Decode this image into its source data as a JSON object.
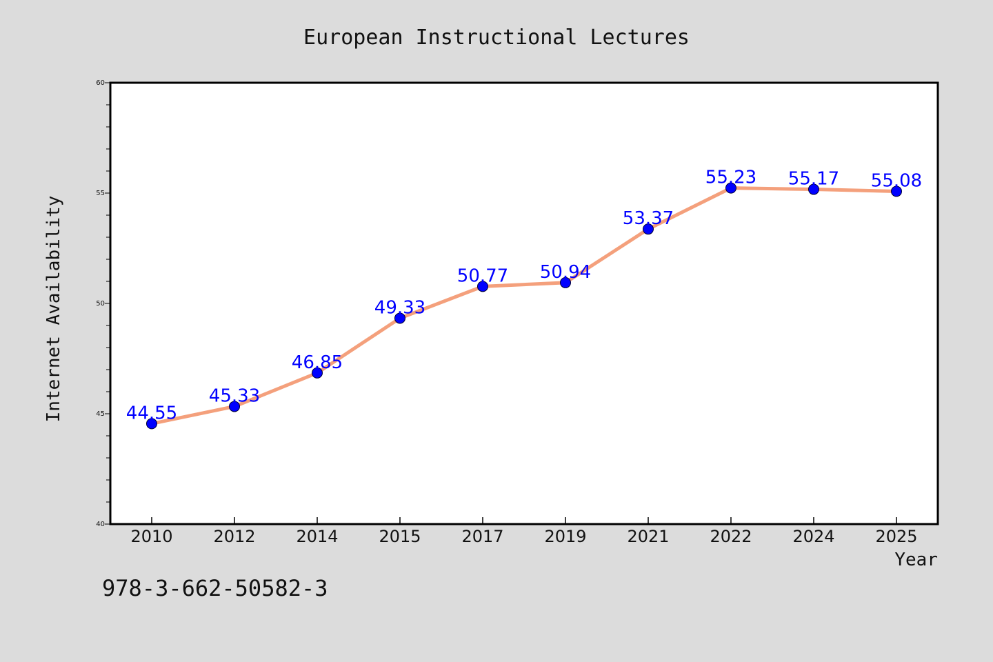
{
  "footer": {
    "code": "978-3-662-50582-3"
  },
  "chart_data": {
    "type": "line",
    "title": "European Instructional Lectures",
    "xlabel": "Year",
    "ylabel": "Internet Availability",
    "categories": [
      "2010",
      "2012",
      "2014",
      "2015",
      "2017",
      "2019",
      "2021",
      "2022",
      "2024",
      "2025"
    ],
    "series": [
      {
        "values": [
          44.55,
          45.33,
          46.85,
          49.33,
          50.77,
          50.94,
          53.37,
          55.23,
          55.17,
          55.08
        ],
        "data_labels": [
          "44.55",
          "45.33",
          "46.85",
          "49.33",
          "50.77",
          "50.94",
          "53.37",
          "55.23",
          "55.17",
          "55.08"
        ],
        "line_color": "#f4a07c",
        "marker_color": "#0000ff"
      }
    ],
    "ylim": [
      40,
      60
    ],
    "yticks": [
      "40",
      "45",
      "50",
      "55",
      "60"
    ],
    "grid": false,
    "legend": "none"
  }
}
